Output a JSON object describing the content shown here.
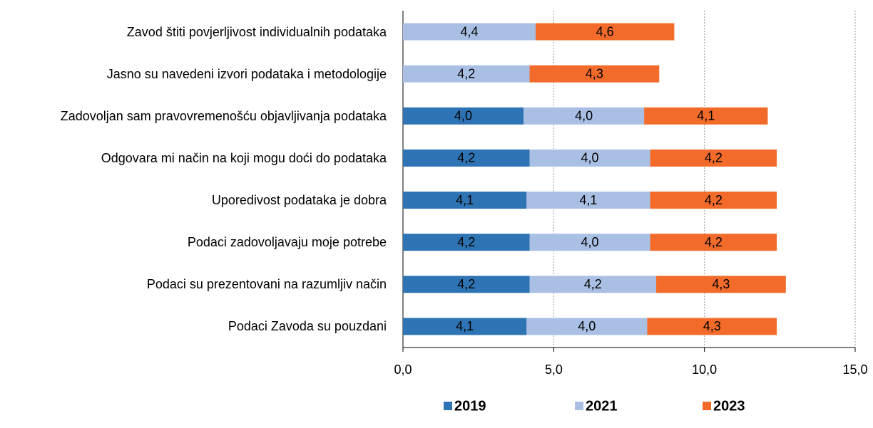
{
  "chart_data": {
    "type": "stacked-barh",
    "categories": [
      "Zavod štiti povjerljivost individualnih podataka",
      "Jasno su navedeni izvori podataka i metodologije",
      "Zadovoljan sam pravovremenošću objavljivanja podataka",
      "Odgovara mi način na koji mogu doći do podataka",
      "Uporedivost podataka je dobra",
      "Podaci zadovoljavaju moje potrebe",
      "Podaci su prezentovani na razumljiv način",
      "Podaci Zavoda su pouzdani"
    ],
    "series": [
      {
        "name": "2019",
        "color": "#2e74b5",
        "values": [
          null,
          null,
          4.0,
          4.2,
          4.1,
          4.2,
          4.2,
          4.1
        ],
        "value_labels": [
          null,
          null,
          "4,0",
          "4,2",
          "4,1",
          "4,2",
          "4,2",
          "4,1"
        ]
      },
      {
        "name": "2021",
        "color": "#a9c0e4",
        "values": [
          4.4,
          4.2,
          4.0,
          4.0,
          4.1,
          4.0,
          4.2,
          4.0
        ],
        "value_labels": [
          "4,4",
          "4,2",
          "4,0",
          "4,0",
          "4,1",
          "4,0",
          "4,2",
          "4,0"
        ]
      },
      {
        "name": "2023",
        "color": "#f26b2a",
        "values": [
          4.6,
          4.3,
          4.1,
          4.2,
          4.2,
          4.2,
          4.3,
          4.3
        ],
        "value_labels": [
          "4,6",
          "4,3",
          "4,1",
          "4,2",
          "4,2",
          "4,2",
          "4,3",
          "4,3"
        ]
      }
    ],
    "xlim": [
      0,
      15
    ],
    "xticks": [
      {
        "value": 0,
        "label": "0,0"
      },
      {
        "value": 5,
        "label": "5,0"
      },
      {
        "value": 10,
        "label": "10,0"
      },
      {
        "value": 15,
        "label": "15,0"
      }
    ],
    "grid": true,
    "legend": "bottom"
  }
}
